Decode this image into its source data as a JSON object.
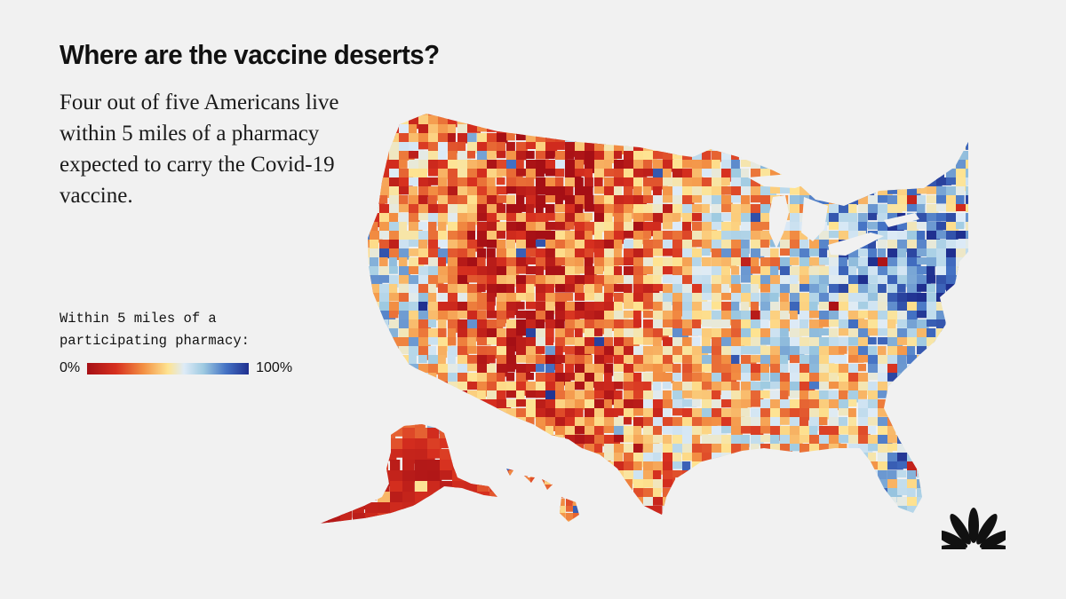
{
  "header": {
    "title": "Where are the vaccine deserts?",
    "subtitle": "Four out of five Americans live within 5 miles of a pharmacy expected to carry the Covid-19 vaccine."
  },
  "legend": {
    "title": "Within 5 miles of a participating pharmacy:",
    "min_label": "0%",
    "max_label": "100%",
    "color_stops": [
      "#a50f15",
      "#d7301f",
      "#f39144",
      "#fee391",
      "#deebf7",
      "#9ecae1",
      "#4472c4",
      "#1f2f8f"
    ]
  },
  "map": {
    "type": "choropleth",
    "geography": "US counties",
    "metric": "Within 5 miles of a participating pharmacy",
    "scale": {
      "min": 0,
      "max": 100,
      "unit": "%"
    },
    "regional_share": {
      "alaska": 5,
      "hawaii": 30,
      "pacific_northwest": 35,
      "california": 65,
      "great_basin_rockies": 10,
      "great_plains": 25,
      "midwest": 55,
      "south": 45,
      "florida": 75,
      "northeast": 85,
      "new_england": 70
    }
  },
  "logo": {
    "icon": "peacock-logo-icon"
  }
}
